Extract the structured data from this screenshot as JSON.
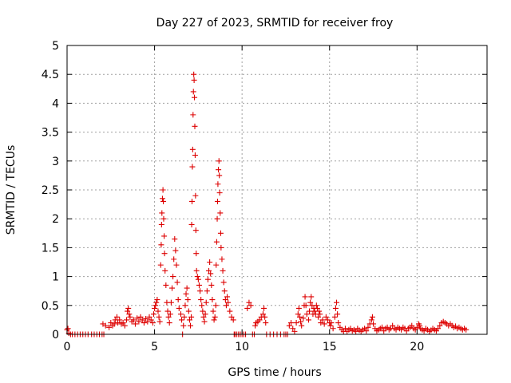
{
  "chart_data": {
    "type": "scatter",
    "title": "Day 227 of 2023, SRMTID for receiver froy",
    "xlabel": "GPS time / hours",
    "ylabel": "SRMTID / TECUs",
    "xlim": [
      0,
      24
    ],
    "ylim": [
      0,
      5
    ],
    "x_ticks": [
      0,
      5,
      10,
      15,
      20
    ],
    "x_tick_labels": [
      "0",
      "5",
      "10",
      "15",
      "20"
    ],
    "y_ticks": [
      0,
      0.5,
      1,
      1.5,
      2,
      2.5,
      3,
      3.5,
      4,
      4.5,
      5
    ],
    "y_tick_labels": [
      "0",
      "0.5",
      "1",
      "1.5",
      "2",
      "2.5",
      "3",
      "3.5",
      "4",
      "4.5",
      "5"
    ],
    "grid": true,
    "marker": "+",
    "color": "#dd0000",
    "series": [
      {
        "name": "SRMTID",
        "points": [
          [
            0.0,
            0.08
          ],
          [
            0.05,
            0.1
          ],
          [
            0.1,
            0.02
          ],
          [
            0.2,
            0.0
          ],
          [
            0.3,
            0.0
          ],
          [
            0.45,
            0.0
          ],
          [
            0.6,
            0.0
          ],
          [
            0.75,
            0.0
          ],
          [
            0.9,
            0.0
          ],
          [
            1.05,
            0.0
          ],
          [
            1.2,
            0.0
          ],
          [
            1.4,
            0.0
          ],
          [
            1.55,
            0.0
          ],
          [
            1.7,
            0.0
          ],
          [
            1.85,
            0.0
          ],
          [
            2.0,
            0.0
          ],
          [
            2.1,
            0.0
          ],
          [
            2.05,
            0.18
          ],
          [
            2.2,
            0.15
          ],
          [
            2.4,
            0.12
          ],
          [
            2.5,
            0.2
          ],
          [
            2.6,
            0.15
          ],
          [
            2.7,
            0.18
          ],
          [
            2.75,
            0.25
          ],
          [
            2.85,
            0.3
          ],
          [
            2.9,
            0.2
          ],
          [
            3.0,
            0.25
          ],
          [
            3.1,
            0.18
          ],
          [
            3.2,
            0.2
          ],
          [
            3.3,
            0.15
          ],
          [
            3.4,
            0.25
          ],
          [
            3.45,
            0.4
          ],
          [
            3.5,
            0.45
          ],
          [
            3.55,
            0.35
          ],
          [
            3.6,
            0.3
          ],
          [
            3.7,
            0.22
          ],
          [
            3.8,
            0.25
          ],
          [
            3.9,
            0.18
          ],
          [
            4.0,
            0.28
          ],
          [
            4.1,
            0.22
          ],
          [
            4.2,
            0.3
          ],
          [
            4.3,
            0.25
          ],
          [
            4.4,
            0.2
          ],
          [
            4.5,
            0.27
          ],
          [
            4.6,
            0.22
          ],
          [
            4.7,
            0.3
          ],
          [
            4.8,
            0.25
          ],
          [
            4.9,
            0.2
          ],
          [
            4.95,
            0.35
          ],
          [
            5.0,
            0.45
          ],
          [
            5.05,
            0.5
          ],
          [
            5.1,
            0.55
          ],
          [
            5.15,
            0.6
          ],
          [
            5.2,
            0.4
          ],
          [
            5.25,
            0.3
          ],
          [
            5.3,
            0.22
          ],
          [
            5.35,
            1.2
          ],
          [
            5.38,
            1.55
          ],
          [
            5.4,
            1.9
          ],
          [
            5.42,
            2.1
          ],
          [
            5.45,
            2.35
          ],
          [
            5.48,
            2.5
          ],
          [
            5.5,
            2.3
          ],
          [
            5.52,
            2.0
          ],
          [
            5.55,
            1.7
          ],
          [
            5.57,
            1.4
          ],
          [
            5.6,
            1.1
          ],
          [
            5.65,
            0.85
          ],
          [
            5.7,
            0.55
          ],
          [
            5.75,
            0.4
          ],
          [
            5.8,
            0.3
          ],
          [
            5.85,
            0.2
          ],
          [
            5.9,
            0.35
          ],
          [
            5.95,
            0.55
          ],
          [
            6.0,
            0.8
          ],
          [
            6.05,
            1.0
          ],
          [
            6.1,
            1.3
          ],
          [
            6.15,
            1.65
          ],
          [
            6.2,
            1.45
          ],
          [
            6.25,
            1.2
          ],
          [
            6.3,
            0.9
          ],
          [
            6.35,
            0.6
          ],
          [
            6.4,
            0.45
          ],
          [
            6.5,
            0.35
          ],
          [
            6.55,
            0.25
          ],
          [
            6.6,
            0.0
          ],
          [
            6.65,
            0.15
          ],
          [
            6.7,
            0.3
          ],
          [
            6.75,
            0.5
          ],
          [
            6.8,
            0.7
          ],
          [
            6.85,
            0.8
          ],
          [
            6.9,
            0.6
          ],
          [
            6.95,
            0.4
          ],
          [
            7.0,
            0.25
          ],
          [
            7.05,
            0.15
          ],
          [
            7.1,
            0.3
          ],
          [
            7.12,
            1.9
          ],
          [
            7.14,
            2.3
          ],
          [
            7.16,
            2.9
          ],
          [
            7.18,
            3.2
          ],
          [
            7.2,
            3.8
          ],
          [
            7.22,
            4.2
          ],
          [
            7.24,
            4.5
          ],
          [
            7.26,
            4.4
          ],
          [
            7.28,
            4.1
          ],
          [
            7.3,
            3.6
          ],
          [
            7.32,
            3.1
          ],
          [
            7.34,
            2.4
          ],
          [
            7.36,
            1.8
          ],
          [
            7.38,
            1.4
          ],
          [
            7.4,
            1.1
          ],
          [
            7.45,
            1.0
          ],
          [
            7.5,
            0.95
          ],
          [
            7.55,
            0.85
          ],
          [
            7.6,
            0.75
          ],
          [
            7.65,
            0.6
          ],
          [
            7.7,
            0.5
          ],
          [
            7.75,
            0.4
          ],
          [
            7.8,
            0.3
          ],
          [
            7.85,
            0.22
          ],
          [
            7.9,
            0.35
          ],
          [
            7.95,
            0.55
          ],
          [
            8.0,
            0.75
          ],
          [
            8.05,
            0.95
          ],
          [
            8.1,
            1.1
          ],
          [
            8.15,
            1.25
          ],
          [
            8.2,
            1.05
          ],
          [
            8.25,
            0.85
          ],
          [
            8.3,
            0.6
          ],
          [
            8.35,
            0.4
          ],
          [
            8.4,
            0.25
          ],
          [
            8.45,
            0.3
          ],
          [
            8.5,
            0.5
          ],
          [
            8.52,
            1.2
          ],
          [
            8.55,
            1.6
          ],
          [
            8.58,
            2.0
          ],
          [
            8.6,
            2.3
          ],
          [
            8.62,
            2.6
          ],
          [
            8.65,
            2.85
          ],
          [
            8.68,
            3.0
          ],
          [
            8.7,
            2.75
          ],
          [
            8.72,
            2.45
          ],
          [
            8.75,
            2.1
          ],
          [
            8.78,
            1.75
          ],
          [
            8.8,
            1.5
          ],
          [
            8.85,
            1.3
          ],
          [
            8.9,
            1.1
          ],
          [
            8.95,
            0.9
          ],
          [
            9.0,
            0.75
          ],
          [
            9.05,
            0.6
          ],
          [
            9.1,
            0.5
          ],
          [
            9.15,
            0.65
          ],
          [
            9.2,
            0.55
          ],
          [
            9.3,
            0.4
          ],
          [
            9.4,
            0.3
          ],
          [
            9.5,
            0.25
          ],
          [
            9.55,
            0.0
          ],
          [
            9.6,
            0.0
          ],
          [
            9.7,
            0.0
          ],
          [
            9.8,
            0.0
          ],
          [
            9.9,
            0.0
          ],
          [
            10.0,
            0.0
          ],
          [
            10.1,
            0.0
          ],
          [
            10.2,
            0.0
          ],
          [
            10.3,
            0.45
          ],
          [
            10.4,
            0.55
          ],
          [
            10.5,
            0.5
          ],
          [
            10.6,
            0.0
          ],
          [
            10.7,
            0.0
          ],
          [
            10.75,
            0.15
          ],
          [
            10.8,
            0.2
          ],
          [
            10.9,
            0.22
          ],
          [
            11.0,
            0.25
          ],
          [
            11.1,
            0.3
          ],
          [
            11.2,
            0.35
          ],
          [
            11.25,
            0.45
          ],
          [
            11.3,
            0.3
          ],
          [
            11.35,
            0.2
          ],
          [
            11.4,
            0.0
          ],
          [
            11.6,
            0.0
          ],
          [
            11.8,
            0.0
          ],
          [
            12.0,
            0.0
          ],
          [
            12.2,
            0.0
          ],
          [
            12.4,
            0.0
          ],
          [
            12.5,
            0.0
          ],
          [
            12.6,
            0.0
          ],
          [
            12.7,
            0.15
          ],
          [
            12.8,
            0.2
          ],
          [
            12.9,
            0.1
          ],
          [
            13.0,
            0.05
          ],
          [
            13.1,
            0.2
          ],
          [
            13.2,
            0.35
          ],
          [
            13.25,
            0.45
          ],
          [
            13.3,
            0.3
          ],
          [
            13.35,
            0.22
          ],
          [
            13.4,
            0.15
          ],
          [
            13.5,
            0.28
          ],
          [
            13.55,
            0.5
          ],
          [
            13.6,
            0.65
          ],
          [
            13.65,
            0.5
          ],
          [
            13.7,
            0.35
          ],
          [
            13.8,
            0.25
          ],
          [
            13.85,
            0.4
          ],
          [
            13.9,
            0.55
          ],
          [
            13.95,
            0.65
          ],
          [
            14.0,
            0.5
          ],
          [
            14.05,
            0.35
          ],
          [
            14.1,
            0.45
          ],
          [
            14.15,
            0.4
          ],
          [
            14.2,
            0.35
          ],
          [
            14.25,
            0.5
          ],
          [
            14.3,
            0.45
          ],
          [
            14.35,
            0.3
          ],
          [
            14.4,
            0.4
          ],
          [
            14.45,
            0.35
          ],
          [
            14.5,
            0.2
          ],
          [
            14.6,
            0.25
          ],
          [
            14.7,
            0.18
          ],
          [
            14.8,
            0.3
          ],
          [
            14.9,
            0.25
          ],
          [
            15.0,
            0.2
          ],
          [
            15.05,
            0.15
          ],
          [
            15.1,
            0.2
          ],
          [
            15.2,
            0.1
          ],
          [
            15.3,
            0.3
          ],
          [
            15.35,
            0.45
          ],
          [
            15.4,
            0.55
          ],
          [
            15.45,
            0.35
          ],
          [
            15.5,
            0.2
          ],
          [
            15.6,
            0.12
          ],
          [
            15.7,
            0.08
          ],
          [
            15.8,
            0.05
          ],
          [
            15.9,
            0.1
          ],
          [
            16.0,
            0.05
          ],
          [
            16.1,
            0.08
          ],
          [
            16.2,
            0.1
          ],
          [
            16.3,
            0.06
          ],
          [
            16.4,
            0.08
          ],
          [
            16.5,
            0.05
          ],
          [
            16.6,
            0.1
          ],
          [
            16.7,
            0.07
          ],
          [
            16.8,
            0.05
          ],
          [
            16.9,
            0.08
          ],
          [
            17.0,
            0.1
          ],
          [
            17.1,
            0.06
          ],
          [
            17.2,
            0.12
          ],
          [
            17.3,
            0.18
          ],
          [
            17.4,
            0.25
          ],
          [
            17.45,
            0.3
          ],
          [
            17.5,
            0.18
          ],
          [
            17.6,
            0.1
          ],
          [
            17.7,
            0.06
          ],
          [
            17.8,
            0.08
          ],
          [
            17.9,
            0.1
          ],
          [
            18.0,
            0.12
          ],
          [
            18.1,
            0.06
          ],
          [
            18.2,
            0.1
          ],
          [
            18.3,
            0.12
          ],
          [
            18.4,
            0.08
          ],
          [
            18.5,
            0.1
          ],
          [
            18.6,
            0.15
          ],
          [
            18.7,
            0.1
          ],
          [
            18.8,
            0.08
          ],
          [
            18.9,
            0.12
          ],
          [
            19.0,
            0.1
          ],
          [
            19.1,
            0.08
          ],
          [
            19.2,
            0.12
          ],
          [
            19.3,
            0.1
          ],
          [
            19.4,
            0.06
          ],
          [
            19.5,
            0.1
          ],
          [
            19.6,
            0.12
          ],
          [
            19.7,
            0.15
          ],
          [
            19.8,
            0.1
          ],
          [
            19.9,
            0.08
          ],
          [
            20.0,
            0.12
          ],
          [
            20.1,
            0.18
          ],
          [
            20.15,
            0.15
          ],
          [
            20.2,
            0.1
          ],
          [
            20.3,
            0.08
          ],
          [
            20.4,
            0.06
          ],
          [
            20.5,
            0.1
          ],
          [
            20.6,
            0.08
          ],
          [
            20.7,
            0.05
          ],
          [
            20.8,
            0.07
          ],
          [
            20.9,
            0.1
          ],
          [
            21.0,
            0.08
          ],
          [
            21.1,
            0.06
          ],
          [
            21.2,
            0.1
          ],
          [
            21.3,
            0.15
          ],
          [
            21.4,
            0.2
          ],
          [
            21.5,
            0.22
          ],
          [
            21.6,
            0.2
          ],
          [
            21.7,
            0.18
          ],
          [
            21.8,
            0.15
          ],
          [
            21.9,
            0.18
          ],
          [
            22.0,
            0.15
          ],
          [
            22.1,
            0.12
          ],
          [
            22.2,
            0.14
          ],
          [
            22.3,
            0.1
          ],
          [
            22.4,
            0.12
          ],
          [
            22.5,
            0.1
          ],
          [
            22.6,
            0.08
          ],
          [
            22.7,
            0.1
          ],
          [
            22.8,
            0.08
          ]
        ]
      }
    ]
  }
}
